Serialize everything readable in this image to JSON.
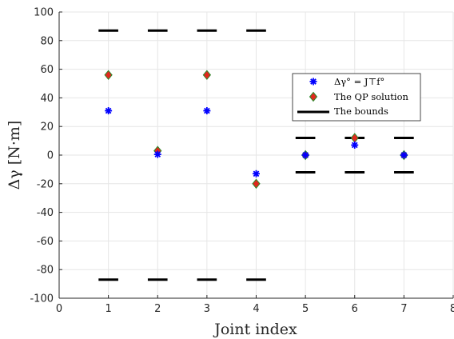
{
  "chart_data": {
    "type": "scatter",
    "xlabel": "Joint index",
    "ylabel": "Δγ [N·m]",
    "xlim": [
      0,
      8
    ],
    "ylim": [
      -100,
      100
    ],
    "x_ticks": [
      0,
      1,
      2,
      3,
      4,
      5,
      6,
      7,
      8
    ],
    "y_ticks": [
      -100,
      -80,
      -60,
      -40,
      -20,
      0,
      20,
      40,
      60,
      80,
      100
    ],
    "grid": true,
    "legend_position": "right, upper-middle",
    "series": [
      {
        "name": "Δγ° = J⊤f°",
        "marker": "asterisk",
        "color": "#0000ff",
        "points": [
          [
            1,
            31
          ],
          [
            2,
            0.5
          ],
          [
            3,
            31
          ],
          [
            4,
            -13
          ],
          [
            5,
            0
          ],
          [
            6,
            7
          ],
          [
            7,
            0
          ]
        ]
      },
      {
        "name": "The QP solution",
        "marker": "diamond",
        "color": "#e0281e",
        "edge_color": "#2a8a2a",
        "points": [
          [
            1,
            56
          ],
          [
            2,
            3
          ],
          [
            3,
            56
          ],
          [
            4,
            -20
          ],
          [
            5,
            0
          ],
          [
            6,
            12
          ],
          [
            7,
            0
          ]
        ]
      },
      {
        "name": "The bounds",
        "marker": "line",
        "color": "#000000",
        "upper": [
          [
            1,
            87
          ],
          [
            2,
            87
          ],
          [
            3,
            87
          ],
          [
            4,
            87
          ],
          [
            5,
            12
          ],
          [
            6,
            12
          ],
          [
            7,
            12
          ]
        ],
        "lower": [
          [
            1,
            -87
          ],
          [
            2,
            -87
          ],
          [
            3,
            -87
          ],
          [
            4,
            -87
          ],
          [
            5,
            -12
          ],
          [
            6,
            -12
          ],
          [
            7,
            -12
          ]
        ]
      }
    ]
  }
}
